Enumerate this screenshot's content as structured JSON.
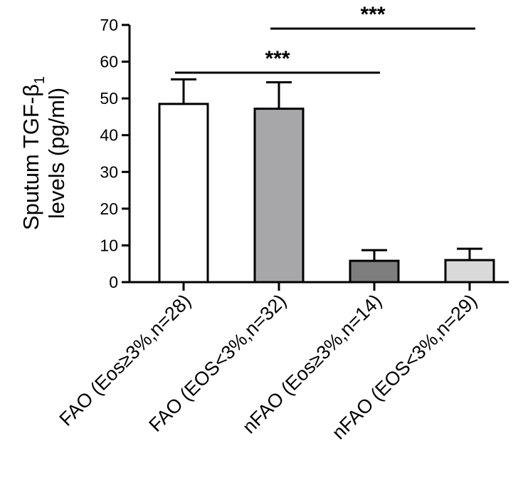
{
  "chart_data": {
    "type": "bar",
    "ylabel_line1": "Sputum TGF-β",
    "ylabel_subscript": "1",
    "ylabel_line2": "levels (pg/ml)",
    "ylim": [
      0,
      70
    ],
    "yticks": [
      0,
      10,
      20,
      30,
      40,
      50,
      60,
      70
    ],
    "categories": [
      "FAO (Eos≥3%,n=28)",
      "FAO (EOS<3%,n=32)",
      "nFAO (Eos≥3%,n=14)",
      "nFAO (EOS<3%,n=29)"
    ],
    "values": [
      48.5,
      47.2,
      5.8,
      6.0
    ],
    "errors": [
      6.7,
      7.2,
      2.9,
      3.1
    ],
    "colors": [
      "#ffffff",
      "#a7a7aa",
      "#7e7e7f",
      "#d9d9d9"
    ],
    "significance": [
      {
        "from": 0,
        "to": 2,
        "label": "***",
        "y": 57
      },
      {
        "from": 1,
        "to": 3,
        "label": "***",
        "y": 69
      }
    ],
    "grid": false,
    "legend": "none"
  }
}
